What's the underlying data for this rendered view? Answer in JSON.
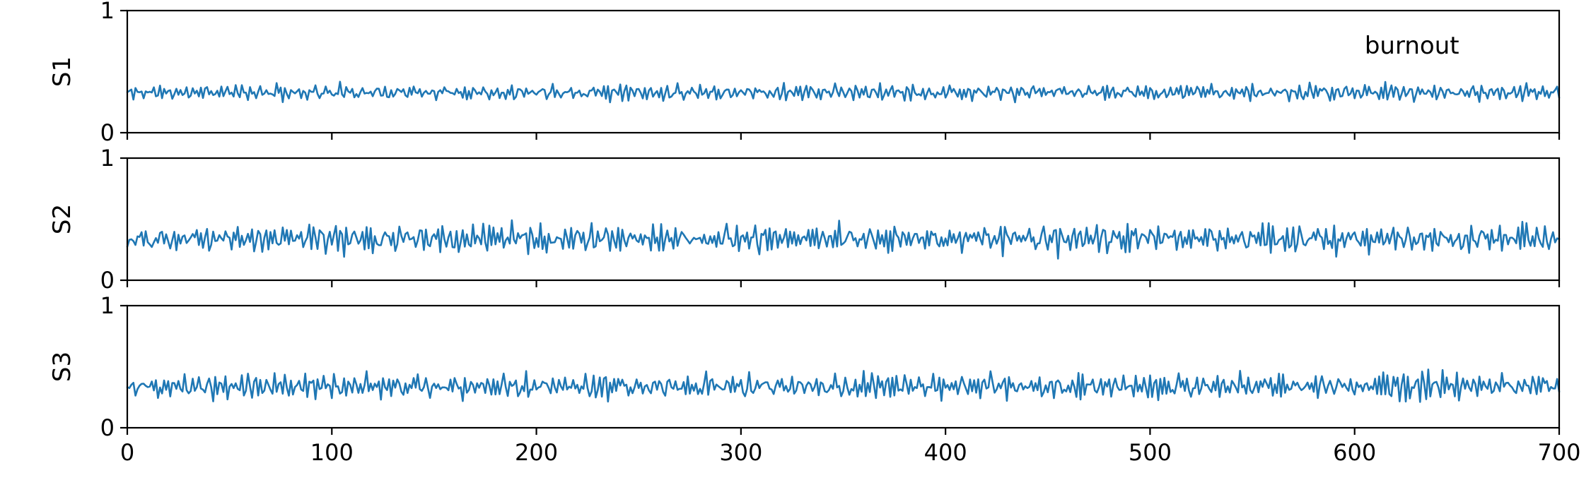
{
  "chart_data": [
    {
      "type": "line",
      "ylabel": "S1",
      "annotation": "burnout",
      "xlim": [
        0,
        700
      ],
      "ylim": [
        0,
        1
      ],
      "yticks": [
        0,
        1
      ],
      "xticks": [
        0,
        100,
        200,
        300,
        400,
        500,
        600,
        700
      ],
      "show_xticklabels": false,
      "grid": false,
      "x": "integers 0..700 (step 1)",
      "series": [
        {
          "values_summary": {
            "mean": 0.33,
            "min": 0.23,
            "max": 0.44,
            "n_points": 701
          }
        }
      ]
    },
    {
      "type": "line",
      "ylabel": "S2",
      "xlim": [
        0,
        700
      ],
      "ylim": [
        0,
        1
      ],
      "yticks": [
        0,
        1
      ],
      "xticks": [
        0,
        100,
        200,
        300,
        400,
        500,
        600,
        700
      ],
      "show_xticklabels": false,
      "grid": false,
      "x": "integers 0..700 (step 1)",
      "series": [
        {
          "values_summary": {
            "mean": 0.34,
            "min": 0.12,
            "max": 0.56,
            "n_points": 701
          }
        }
      ]
    },
    {
      "type": "line",
      "ylabel": "S3",
      "xlim": [
        0,
        700
      ],
      "ylim": [
        0,
        1
      ],
      "yticks": [
        0,
        1
      ],
      "xticks": [
        0,
        100,
        200,
        300,
        400,
        500,
        600,
        700
      ],
      "show_xticklabels": true,
      "grid": false,
      "x": "integers 0..700 (step 1)",
      "series": [
        {
          "values_summary": {
            "mean": 0.34,
            "min": 0.15,
            "max": 0.55,
            "n_points": 701
          }
        }
      ]
    }
  ],
  "colors": {
    "line": "#1f77b4",
    "axes": "#000000",
    "background": "#ffffff"
  }
}
